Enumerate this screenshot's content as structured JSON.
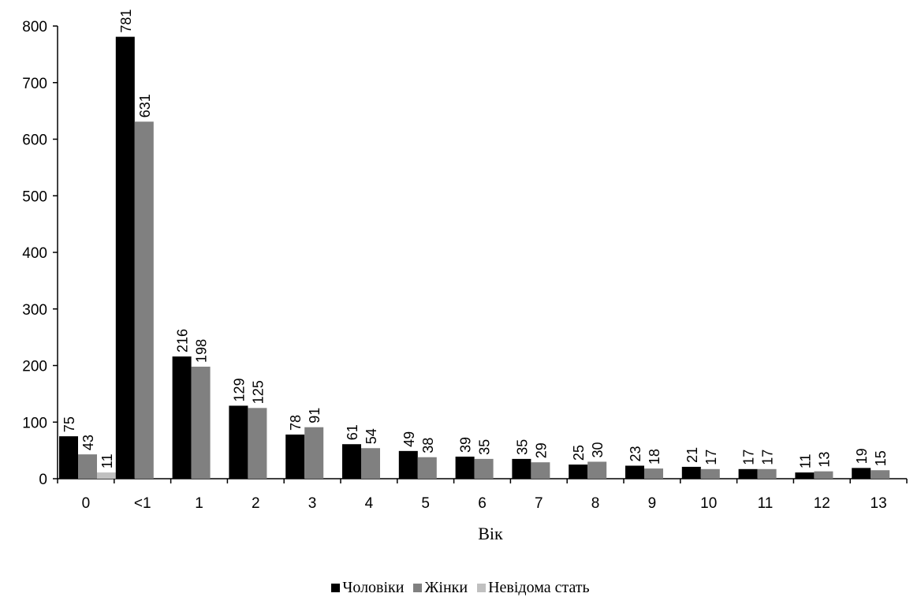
{
  "chart_data": {
    "type": "bar",
    "xlabel": "Вік",
    "ylabel": "",
    "ylim": [
      0,
      800
    ],
    "yticks": [
      0,
      100,
      200,
      300,
      400,
      500,
      600,
      700,
      800
    ],
    "grid": false,
    "legend_position": "bottom",
    "categories": [
      "0",
      "<1",
      "1",
      "2",
      "3",
      "4",
      "5",
      "6",
      "7",
      "8",
      "9",
      "10",
      "11",
      "12",
      "13"
    ],
    "series": [
      {
        "name": "Чоловіки",
        "color": "#000000",
        "values": [
          75,
          781,
          216,
          129,
          78,
          61,
          49,
          39,
          35,
          25,
          23,
          21,
          17,
          11,
          19
        ]
      },
      {
        "name": "Жінки",
        "color": "#808080",
        "values": [
          43,
          631,
          198,
          125,
          91,
          54,
          38,
          35,
          29,
          30,
          18,
          17,
          17,
          13,
          15
        ]
      },
      {
        "name": "Невідома стать",
        "color": "#c0c0c0",
        "values": [
          11,
          null,
          null,
          null,
          null,
          null,
          null,
          null,
          null,
          null,
          null,
          null,
          null,
          null,
          null
        ]
      }
    ]
  }
}
